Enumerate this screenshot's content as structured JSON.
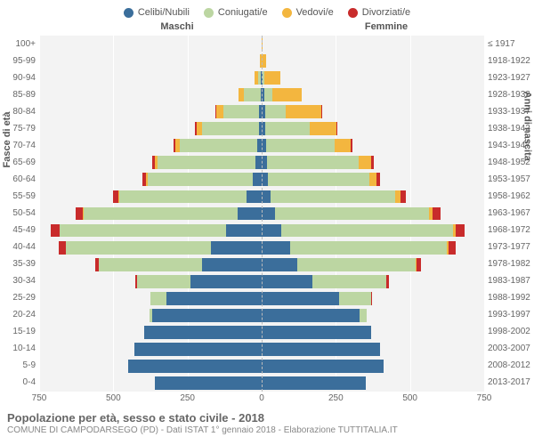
{
  "colors": {
    "celibi": "#3b6e9b",
    "coniugati": "#bcd6a2",
    "vedovi": "#f3b63f",
    "divorziati": "#c82b2b",
    "bg": "#f3f3f3",
    "grid": "#ffffff"
  },
  "legend": [
    {
      "label": "Celibi/Nubili",
      "colorKey": "celibi"
    },
    {
      "label": "Coniugati/e",
      "colorKey": "coniugati"
    },
    {
      "label": "Vedovi/e",
      "colorKey": "vedovi"
    },
    {
      "label": "Divorziati/e",
      "colorKey": "divorziati"
    }
  ],
  "headers": {
    "left": "Maschi",
    "right": "Femmine"
  },
  "y_title_left": "Fasce di età",
  "y_title_right": "Anni di nascita",
  "title": "Popolazione per età, sesso e stato civile - 2018",
  "subtitle": "COMUNE DI CAMPODARSEGO (PD) - Dati ISTAT 1° gennaio 2018 - Elaborazione TUTTITALIA.IT",
  "x_max": 750,
  "x_ticks_left": [
    750,
    500,
    250,
    0
  ],
  "x_ticks_right": [
    250,
    500,
    750
  ],
  "rows": [
    {
      "age": "100+",
      "birth": "≤ 1917",
      "m": {
        "c": 0,
        "co": 0,
        "v": 0,
        "d": 0
      },
      "f": {
        "c": 0,
        "co": 0,
        "v": 2,
        "d": 0
      }
    },
    {
      "age": "95-99",
      "birth": "1918-1922",
      "m": {
        "c": 0,
        "co": 0,
        "v": 6,
        "d": 0
      },
      "f": {
        "c": 1,
        "co": 0,
        "v": 14,
        "d": 0
      }
    },
    {
      "age": "90-94",
      "birth": "1923-1927",
      "m": {
        "c": 2,
        "co": 10,
        "v": 12,
        "d": 0
      },
      "f": {
        "c": 4,
        "co": 4,
        "v": 55,
        "d": 0
      }
    },
    {
      "age": "85-89",
      "birth": "1928-1932",
      "m": {
        "c": 4,
        "co": 55,
        "v": 20,
        "d": 0
      },
      "f": {
        "c": 10,
        "co": 25,
        "v": 100,
        "d": 0
      }
    },
    {
      "age": "80-84",
      "birth": "1933-1937",
      "m": {
        "c": 8,
        "co": 120,
        "v": 25,
        "d": 2
      },
      "f": {
        "c": 12,
        "co": 70,
        "v": 120,
        "d": 2
      }
    },
    {
      "age": "75-79",
      "birth": "1938-1942",
      "m": {
        "c": 10,
        "co": 190,
        "v": 20,
        "d": 4
      },
      "f": {
        "c": 12,
        "co": 150,
        "v": 90,
        "d": 4
      }
    },
    {
      "age": "70-74",
      "birth": "1943-1947",
      "m": {
        "c": 15,
        "co": 260,
        "v": 15,
        "d": 6
      },
      "f": {
        "c": 15,
        "co": 230,
        "v": 55,
        "d": 6
      }
    },
    {
      "age": "65-69",
      "birth": "1948-1952",
      "m": {
        "c": 20,
        "co": 330,
        "v": 10,
        "d": 10
      },
      "f": {
        "c": 18,
        "co": 310,
        "v": 40,
        "d": 10
      }
    },
    {
      "age": "60-64",
      "birth": "1953-1957",
      "m": {
        "c": 30,
        "co": 355,
        "v": 6,
        "d": 12
      },
      "f": {
        "c": 22,
        "co": 340,
        "v": 25,
        "d": 12
      }
    },
    {
      "age": "55-59",
      "birth": "1958-1962",
      "m": {
        "c": 50,
        "co": 430,
        "v": 4,
        "d": 18
      },
      "f": {
        "c": 30,
        "co": 420,
        "v": 18,
        "d": 18
      }
    },
    {
      "age": "50-54",
      "birth": "1963-1967",
      "m": {
        "c": 80,
        "co": 520,
        "v": 3,
        "d": 25
      },
      "f": {
        "c": 45,
        "co": 520,
        "v": 12,
        "d": 25
      }
    },
    {
      "age": "45-49",
      "birth": "1968-1972",
      "m": {
        "c": 120,
        "co": 560,
        "v": 2,
        "d": 30
      },
      "f": {
        "c": 65,
        "co": 580,
        "v": 8,
        "d": 32
      }
    },
    {
      "age": "40-44",
      "birth": "1973-1977",
      "m": {
        "c": 170,
        "co": 490,
        "v": 1,
        "d": 22
      },
      "f": {
        "c": 95,
        "co": 530,
        "v": 5,
        "d": 25
      }
    },
    {
      "age": "35-39",
      "birth": "1978-1982",
      "m": {
        "c": 200,
        "co": 350,
        "v": 0,
        "d": 12
      },
      "f": {
        "c": 120,
        "co": 400,
        "v": 2,
        "d": 15
      }
    },
    {
      "age": "30-34",
      "birth": "1983-1987",
      "m": {
        "c": 240,
        "co": 180,
        "v": 0,
        "d": 5
      },
      "f": {
        "c": 170,
        "co": 250,
        "v": 0,
        "d": 8
      }
    },
    {
      "age": "25-29",
      "birth": "1988-1992",
      "m": {
        "c": 320,
        "co": 55,
        "v": 0,
        "d": 1
      },
      "f": {
        "c": 260,
        "co": 110,
        "v": 0,
        "d": 2
      }
    },
    {
      "age": "20-24",
      "birth": "1993-1997",
      "m": {
        "c": 370,
        "co": 8,
        "v": 0,
        "d": 0
      },
      "f": {
        "c": 330,
        "co": 25,
        "v": 0,
        "d": 0
      }
    },
    {
      "age": "15-19",
      "birth": "1998-2002",
      "m": {
        "c": 395,
        "co": 0,
        "v": 0,
        "d": 0
      },
      "f": {
        "c": 370,
        "co": 0,
        "v": 0,
        "d": 0
      }
    },
    {
      "age": "10-14",
      "birth": "2003-2007",
      "m": {
        "c": 430,
        "co": 0,
        "v": 0,
        "d": 0
      },
      "f": {
        "c": 400,
        "co": 0,
        "v": 0,
        "d": 0
      }
    },
    {
      "age": "5-9",
      "birth": "2008-2012",
      "m": {
        "c": 450,
        "co": 0,
        "v": 0,
        "d": 0
      },
      "f": {
        "c": 410,
        "co": 0,
        "v": 0,
        "d": 0
      }
    },
    {
      "age": "0-4",
      "birth": "2013-2017",
      "m": {
        "c": 360,
        "co": 0,
        "v": 0,
        "d": 0
      },
      "f": {
        "c": 350,
        "co": 0,
        "v": 0,
        "d": 0
      }
    }
  ]
}
